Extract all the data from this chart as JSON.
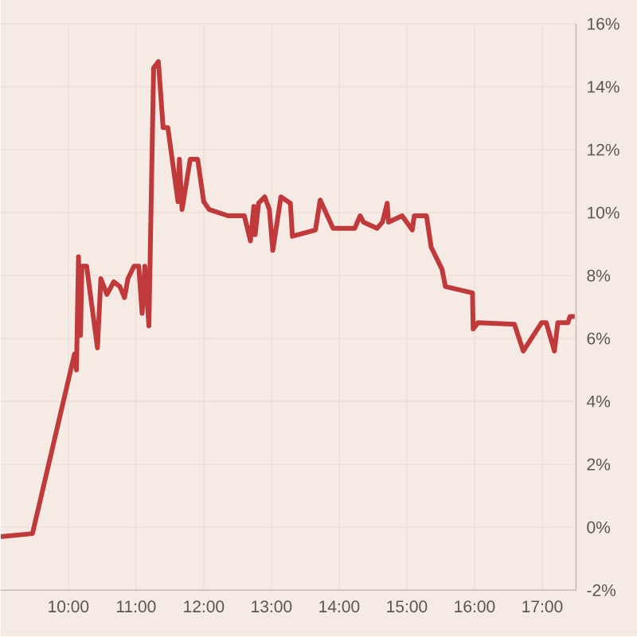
{
  "chart_data": {
    "type": "line",
    "x": [
      9.0,
      9.47,
      10.09,
      10.12,
      10.15,
      10.18,
      10.2,
      10.27,
      10.43,
      10.48,
      10.57,
      10.67,
      10.76,
      10.83,
      10.88,
      10.97,
      11.04,
      11.09,
      11.13,
      11.19,
      11.26,
      11.33,
      11.4,
      11.47,
      11.62,
      11.64,
      11.68,
      11.8,
      11.91,
      12.0,
      12.08,
      12.36,
      12.6,
      12.69,
      12.74,
      12.76,
      12.81,
      12.9,
      12.97,
      13.02,
      13.14,
      13.28,
      13.31,
      13.65,
      13.72,
      13.91,
      14.23,
      14.31,
      14.36,
      14.56,
      14.64,
      14.71,
      14.73,
      14.93,
      15.08,
      15.11,
      15.29,
      15.36,
      15.52,
      15.57,
      15.97,
      15.98,
      16.05,
      16.59,
      16.72,
      16.99,
      17.06,
      17.18,
      17.23,
      17.38,
      17.41,
      17.48
    ],
    "values": [
      -0.3,
      -0.2,
      5.5,
      5.0,
      8.6,
      6.1,
      8.3,
      8.3,
      5.7,
      7.9,
      7.4,
      7.8,
      7.65,
      7.3,
      7.9,
      8.3,
      8.3,
      6.8,
      8.3,
      6.4,
      14.6,
      14.8,
      12.7,
      12.7,
      10.35,
      11.7,
      10.1,
      11.7,
      11.7,
      10.35,
      10.1,
      9.9,
      9.9,
      9.1,
      10.2,
      9.3,
      10.3,
      10.5,
      10.1,
      8.8,
      10.5,
      10.3,
      9.25,
      9.45,
      10.4,
      9.5,
      9.5,
      9.9,
      9.7,
      9.5,
      9.7,
      10.3,
      9.7,
      9.9,
      9.45,
      9.9,
      9.9,
      8.9,
      8.2,
      7.65,
      7.45,
      6.3,
      6.5,
      6.45,
      5.6,
      6.5,
      6.5,
      5.6,
      6.5,
      6.5,
      6.7,
      6.7
    ],
    "color": "#c0393b",
    "line_style": "solid",
    "xlim": [
      9,
      17.5
    ],
    "ylim": [
      -2,
      16
    ],
    "xticks": [
      {
        "value": 10,
        "label": "10:00"
      },
      {
        "value": 11,
        "label": "11:00"
      },
      {
        "value": 12,
        "label": "12:00"
      },
      {
        "value": 13,
        "label": "13:00"
      },
      {
        "value": 14,
        "label": "14:00"
      },
      {
        "value": 15,
        "label": "15:00"
      },
      {
        "value": 16,
        "label": "16:00"
      },
      {
        "value": 17,
        "label": "17:00"
      }
    ],
    "yticks": [
      {
        "value": -2,
        "label": "-2%"
      },
      {
        "value": 0,
        "label": "0%"
      },
      {
        "value": 2,
        "label": "2%"
      },
      {
        "value": 4,
        "label": "4%"
      },
      {
        "value": 6,
        "label": "6%"
      },
      {
        "value": 8,
        "label": "8%"
      },
      {
        "value": 10,
        "label": "10%"
      },
      {
        "value": 12,
        "label": "12%"
      },
      {
        "value": 14,
        "label": "14%"
      },
      {
        "value": 16,
        "label": "16%"
      }
    ],
    "grid": true
  }
}
